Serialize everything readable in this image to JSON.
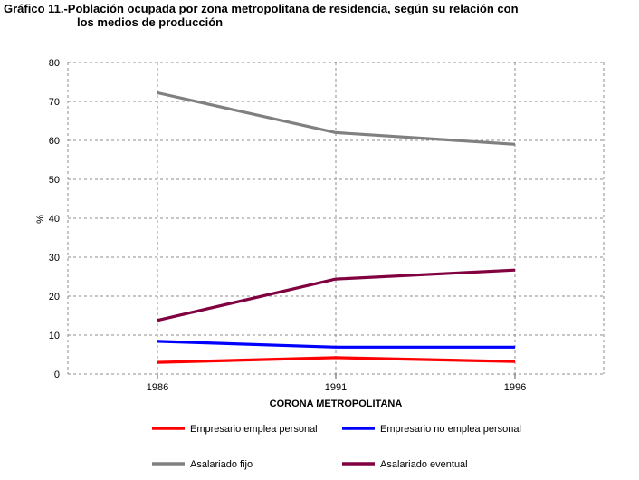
{
  "chart_data": {
    "type": "line",
    "title_line1": "Gráfico 11.-Población ocupada por zona metropolitana de residencia, según su  relación  con",
    "title_line2": "los medios de producción",
    "xlabel": "CORONA METROPOLITANA",
    "ylabel": "%",
    "x": [
      "1986",
      "1991",
      "1996"
    ],
    "ylim": [
      0,
      80
    ],
    "yticks": [
      "0",
      "10",
      "20",
      "30",
      "40",
      "50",
      "60",
      "70",
      "80"
    ],
    "grid": true,
    "legend_position": "bottom",
    "series": [
      {
        "name": "Empresario emplea personal",
        "values": [
          3.0,
          4.2,
          3.2
        ],
        "color": "#ff0000"
      },
      {
        "name": "Empresario no emplea personal",
        "values": [
          8.4,
          6.9,
          6.9
        ],
        "color": "#0000ff"
      },
      {
        "name": "Asalariado fijo",
        "values": [
          72.2,
          62.0,
          59.0
        ],
        "color": "#808080"
      },
      {
        "name": "Asalariado eventual",
        "values": [
          13.8,
          24.4,
          26.7
        ],
        "color": "#800040"
      }
    ]
  }
}
